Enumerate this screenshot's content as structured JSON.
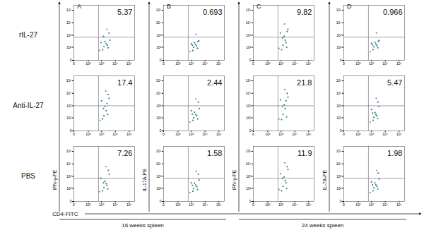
{
  "chart_data": {
    "type": "scatter",
    "log": true,
    "data_labels": true,
    "xlabel": "CD4-FITC",
    "rows": [
      "rIL-27",
      "Anti-IL-27",
      "PBS"
    ],
    "columns": [
      {
        "letter": "A",
        "ylabel": "IFN-γ-PE"
      },
      {
        "letter": "B",
        "ylabel": "IL-17A-PE"
      },
      {
        "letter": "C",
        "ylabel": "IFN-γ-PE"
      },
      {
        "letter": "D",
        "ylabel": "IL-7A-PE"
      }
    ],
    "groups": [
      {
        "label": "16 weeks spleen",
        "columns": [
          0,
          1
        ]
      },
      {
        "label": "24 weeks spleen",
        "columns": [
          2,
          3
        ]
      }
    ],
    "xlim": [
      0,
      250000
    ],
    "ylim": [
      0,
      250000
    ],
    "xticks": [
      0,
      {
        "value": 100,
        "label": "10²"
      },
      {
        "value": 1000,
        "label": "10³"
      },
      {
        "value": 10000,
        "label": "10⁴"
      },
      {
        "value": 100000,
        "label": "10⁵"
      }
    ],
    "yticks": [
      0,
      {
        "value": 100,
        "label": "10²"
      },
      {
        "value": 1000,
        "label": "10³"
      },
      {
        "value": 10000,
        "label": "10⁴"
      },
      {
        "value": 100000,
        "label": "10⁵"
      }
    ],
    "panels": [
      {
        "row": 0,
        "col": 0,
        "value": 5.37,
        "gates": {
          "x": 600,
          "y": 700
        },
        "x": [
          1500,
          2200,
          3000,
          1800,
          2600,
          1200,
          900,
          4000,
          1400,
          3500,
          700,
          2500
        ],
        "y": [
          120,
          200,
          90,
          300,
          150,
          60,
          250,
          400,
          800,
          1500,
          50,
          3000
        ],
        "colors": [
          "#1f8a70",
          "#1f8a70",
          "#1f8a70",
          "#1f8a70",
          "#1f8a70",
          "#1f8a70",
          "#5b5fc7",
          "#5b5fc7",
          "#5b5fc7",
          "#5b5fc7",
          "#8c8c8c",
          "#8c8c8c"
        ]
      },
      {
        "row": 0,
        "col": 1,
        "value": 0.693,
        "gates": {
          "x": 600,
          "y": 700
        },
        "x": [
          1500,
          2000,
          2800,
          1700,
          2400,
          1300,
          1000,
          3500,
          1200,
          3000,
          800,
          2200
        ],
        "y": [
          100,
          180,
          80,
          250,
          130,
          50,
          200,
          350,
          150,
          300,
          40,
          1200
        ],
        "colors": [
          "#1f8a70",
          "#1f8a70",
          "#1f8a70",
          "#1f8a70",
          "#1f8a70",
          "#1f8a70",
          "#5b5fc7",
          "#5b5fc7",
          "#5b5fc7",
          "#5b5fc7",
          "#8c8c8c",
          "#8c8c8c"
        ]
      },
      {
        "row": 0,
        "col": 2,
        "value": 9.82,
        "gates": {
          "x": 600,
          "y": 700
        },
        "x": [
          1400,
          2000,
          2600,
          1700,
          2300,
          1100,
          900,
          3200,
          1300,
          2800,
          700,
          1800
        ],
        "y": [
          150,
          400,
          100,
          800,
          250,
          60,
          1500,
          3000,
          600,
          2000,
          80,
          8000
        ],
        "colors": [
          "#1f8a70",
          "#1f8a70",
          "#1f8a70",
          "#1f8a70",
          "#1f8a70",
          "#1f8a70",
          "#5b5fc7",
          "#5b5fc7",
          "#5b5fc7",
          "#5b5fc7",
          "#8c8c8c",
          "#8c8c8c"
        ]
      },
      {
        "row": 0,
        "col": 3,
        "value": 0.966,
        "gates": {
          "x": 600,
          "y": 700
        },
        "x": [
          1500,
          2100,
          2900,
          1800,
          2500,
          1300,
          1000,
          3600,
          1200,
          3100,
          800,
          2300
        ],
        "y": [
          110,
          190,
          90,
          270,
          140,
          60,
          220,
          380,
          160,
          320,
          40,
          1500
        ],
        "colors": [
          "#1f8a70",
          "#1f8a70",
          "#1f8a70",
          "#1f8a70",
          "#1f8a70",
          "#1f8a70",
          "#5b5fc7",
          "#5b5fc7",
          "#5b5fc7",
          "#5b5fc7",
          "#8c8c8c",
          "#8c8c8c"
        ]
      },
      {
        "row": 1,
        "col": 0,
        "value": 17.4,
        "gates": {
          "x": 600,
          "y": 1000
        },
        "x": [
          1500,
          2200,
          2800,
          1800,
          2500,
          1200,
          1000,
          3500,
          1400,
          3000,
          800,
          2000
        ],
        "y": [
          150,
          400,
          200,
          900,
          1500,
          80,
          2500,
          4000,
          600,
          8000,
          60,
          15000
        ],
        "colors": [
          "#1f8a70",
          "#1f8a70",
          "#1f8a70",
          "#1f8a70",
          "#1f8a70",
          "#1f8a70",
          "#5b5fc7",
          "#5b5fc7",
          "#5b5fc7",
          "#5b5fc7",
          "#8c8c8c",
          "#8c8c8c"
        ]
      },
      {
        "row": 1,
        "col": 1,
        "value": 2.44,
        "gates": {
          "x": 600,
          "y": 1000
        },
        "x": [
          1500,
          2100,
          2900,
          1700,
          2500,
          1300,
          1000,
          3800,
          1200,
          3200,
          800,
          2200
        ],
        "y": [
          100,
          200,
          80,
          300,
          150,
          60,
          400,
          600,
          200,
          2000,
          40,
          3500
        ],
        "colors": [
          "#1f8a70",
          "#1f8a70",
          "#1f8a70",
          "#1f8a70",
          "#1f8a70",
          "#1f8a70",
          "#5b5fc7",
          "#5b5fc7",
          "#5b5fc7",
          "#5b5fc7",
          "#8c8c8c",
          "#8c8c8c"
        ]
      },
      {
        "row": 1,
        "col": 2,
        "value": 21.8,
        "gates": {
          "x": 600,
          "y": 1000
        },
        "x": [
          1400,
          2000,
          2600,
          1700,
          2300,
          1100,
          900,
          3200,
          1300,
          2800,
          700,
          1900
        ],
        "y": [
          200,
          600,
          120,
          1200,
          2500,
          70,
          3000,
          5000,
          900,
          10000,
          80,
          20000
        ],
        "colors": [
          "#1f8a70",
          "#1f8a70",
          "#1f8a70",
          "#1f8a70",
          "#1f8a70",
          "#1f8a70",
          "#5b5fc7",
          "#5b5fc7",
          "#5b5fc7",
          "#5b5fc7",
          "#8c8c8c",
          "#8c8c8c"
        ]
      },
      {
        "row": 1,
        "col": 3,
        "value": 5.47,
        "gates": {
          "x": 600,
          "y": 1000
        },
        "x": [
          1500,
          2100,
          2800,
          1800,
          2400,
          1300,
          1000,
          3500,
          1200,
          3000,
          800,
          2200
        ],
        "y": [
          110,
          200,
          90,
          280,
          150,
          60,
          500,
          900,
          250,
          2000,
          40,
          4000
        ],
        "colors": [
          "#1f8a70",
          "#1f8a70",
          "#1f8a70",
          "#1f8a70",
          "#1f8a70",
          "#1f8a70",
          "#5b5fc7",
          "#5b5fc7",
          "#5b5fc7",
          "#5b5fc7",
          "#8c8c8c",
          "#8c8c8c"
        ]
      },
      {
        "row": 2,
        "col": 0,
        "value": 7.26,
        "gates": {
          "x": 600,
          "y": 700
        },
        "x": [
          1500,
          2200,
          2900,
          1800,
          2500,
          1200,
          900,
          3600,
          1400,
          3100,
          700,
          2100
        ],
        "y": [
          120,
          250,
          90,
          400,
          180,
          60,
          700,
          1500,
          300,
          3000,
          50,
          6000
        ],
        "colors": [
          "#1f8a70",
          "#1f8a70",
          "#1f8a70",
          "#1f8a70",
          "#1f8a70",
          "#1f8a70",
          "#5b5fc7",
          "#5b5fc7",
          "#5b5fc7",
          "#5b5fc7",
          "#8c8c8c",
          "#8c8c8c"
        ]
      },
      {
        "row": 2,
        "col": 1,
        "value": 1.58,
        "gates": {
          "x": 600,
          "y": 700
        },
        "x": [
          1500,
          2100,
          2900,
          1700,
          2500,
          1300,
          1000,
          3700,
          1200,
          3200,
          800,
          2300
        ],
        "y": [
          100,
          190,
          80,
          280,
          140,
          55,
          300,
          500,
          180,
          1500,
          40,
          2500
        ],
        "colors": [
          "#1f8a70",
          "#1f8a70",
          "#1f8a70",
          "#1f8a70",
          "#1f8a70",
          "#1f8a70",
          "#5b5fc7",
          "#5b5fc7",
          "#5b5fc7",
          "#5b5fc7",
          "#8c8c8c",
          "#8c8c8c"
        ]
      },
      {
        "row": 2,
        "col": 2,
        "value": 11.9,
        "gates": {
          "x": 600,
          "y": 700
        },
        "x": [
          1400,
          2000,
          2600,
          1700,
          2300,
          1100,
          900,
          3200,
          1300,
          2800,
          700,
          1900
        ],
        "y": [
          150,
          450,
          100,
          900,
          300,
          60,
          1600,
          3500,
          700,
          6000,
          80,
          12000
        ],
        "colors": [
          "#1f8a70",
          "#1f8a70",
          "#1f8a70",
          "#1f8a70",
          "#1f8a70",
          "#1f8a70",
          "#5b5fc7",
          "#5b5fc7",
          "#5b5fc7",
          "#5b5fc7",
          "#8c8c8c",
          "#8c8c8c"
        ]
      },
      {
        "row": 2,
        "col": 3,
        "value": 1.98,
        "gates": {
          "x": 600,
          "y": 700
        },
        "x": [
          1500,
          2100,
          2900,
          1800,
          2500,
          1300,
          1000,
          3600,
          1200,
          3100,
          800,
          2300
        ],
        "y": [
          110,
          200,
          90,
          290,
          150,
          60,
          350,
          600,
          200,
          1800,
          40,
          3000
        ],
        "colors": [
          "#1f8a70",
          "#1f8a70",
          "#1f8a70",
          "#1f8a70",
          "#1f8a70",
          "#1f8a70",
          "#5b5fc7",
          "#5b5fc7",
          "#5b5fc7",
          "#5b5fc7",
          "#8c8c8c",
          "#8c8c8c"
        ]
      }
    ]
  }
}
